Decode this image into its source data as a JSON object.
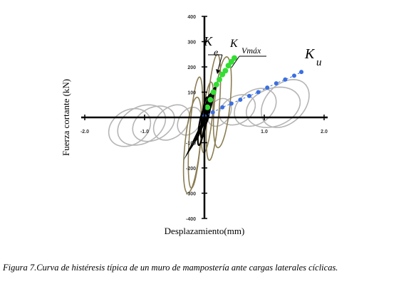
{
  "chart_data": {
    "type": "line",
    "xlabel": "Desplazamiento(mm)",
    "ylabel": "Fuerza cortante (kN)",
    "xlim": [
      -2.0,
      2.0
    ],
    "ylim": [
      -400,
      400
    ],
    "x_ticks": [
      "-2.0",
      "-1.0",
      "1.0",
      "2.0"
    ],
    "y_ticks": [
      "400",
      "300",
      "200",
      "100",
      "-100",
      "-200",
      "-300",
      "-400"
    ],
    "grid": false,
    "annotations": [
      {
        "base": "K",
        "sub": "e"
      },
      {
        "base": "K",
        "sub": "Vmáx"
      },
      {
        "base": "K",
        "sub": "u"
      }
    ],
    "series": [
      {
        "color": "#b5b5b5",
        "loops": [
          {
            "cx": 0.85,
            "cy": 40,
            "ax": 0.35,
            "ay": 75,
            "tilt": 0.3
          },
          {
            "cx": 1.15,
            "cy": 40,
            "ax": 0.45,
            "ay": 80,
            "tilt": 0.25
          },
          {
            "cx": 1.35,
            "cy": 55,
            "ax": 0.4,
            "ay": 95,
            "tilt": 0.35
          },
          {
            "cx": 0.55,
            "cy": 30,
            "ax": 0.3,
            "ay": 60,
            "tilt": 0.3
          },
          {
            "cx": -0.85,
            "cy": -25,
            "ax": 0.35,
            "ay": 70,
            "tilt": 0.3
          },
          {
            "cx": -1.05,
            "cy": -30,
            "ax": 0.4,
            "ay": 80,
            "tilt": 0.3
          },
          {
            "cx": -1.25,
            "cy": -40,
            "ax": 0.35,
            "ay": 75,
            "tilt": 0.25
          },
          {
            "cx": -0.55,
            "cy": -20,
            "ax": 0.3,
            "ay": 70,
            "tilt": 0.35
          },
          {
            "cx": 0.25,
            "cy": 20,
            "ax": 0.2,
            "ay": 55,
            "tilt": 0.3
          },
          {
            "cx": -0.25,
            "cy": -15,
            "ax": 0.2,
            "ay": 55,
            "tilt": 0.3
          }
        ]
      },
      {
        "color": "#8b7d53",
        "loops": [
          {
            "cx": 0.15,
            "cy": 40,
            "ax": 0.12,
            "ay": 210,
            "tilt": 0.6
          },
          {
            "cx": -0.15,
            "cy": -60,
            "ax": 0.12,
            "ay": 220,
            "tilt": 0.6
          },
          {
            "cx": -0.2,
            "cy": -110,
            "ax": 0.15,
            "ay": 190,
            "tilt": 0.55
          },
          {
            "cx": 0.3,
            "cy": 60,
            "ax": 0.15,
            "ay": 180,
            "tilt": 0.5
          },
          {
            "cx": 0.05,
            "cy": 0,
            "ax": 0.1,
            "ay": 140,
            "tilt": 0.65
          }
        ]
      },
      {
        "color": "#000000",
        "loops": [
          {
            "cx": 0.0,
            "cy": 0,
            "ax": 0.06,
            "ay": 80,
            "tilt": 0.8
          },
          {
            "cx": -0.05,
            "cy": -40,
            "ax": 0.06,
            "ay": 70,
            "tilt": 0.75
          },
          {
            "cx": 0.05,
            "cy": 30,
            "ax": 0.06,
            "ay": 60,
            "tilt": 0.8
          }
        ]
      }
    ],
    "ku_points": {
      "color": "#3b6fe0",
      "x": [
        0.0,
        0.14,
        0.3,
        0.45,
        0.6,
        0.75,
        0.9,
        1.05,
        1.2,
        1.35,
        1.5,
        1.62
      ],
      "y": [
        5,
        20,
        40,
        55,
        70,
        85,
        100,
        118,
        135,
        150,
        165,
        180
      ]
    },
    "kvmax_points": {
      "color": "#33dd33",
      "x": [
        0.05,
        0.1,
        0.15,
        0.2,
        0.25,
        0.3,
        0.35,
        0.4,
        0.45,
        0.5
      ],
      "y": [
        40,
        70,
        100,
        130,
        150,
        170,
        185,
        205,
        220,
        235
      ]
    }
  },
  "caption": "Figura 7.Curva de histéresis típica de un muro de mampostería ante cargas laterales cíclicas."
}
